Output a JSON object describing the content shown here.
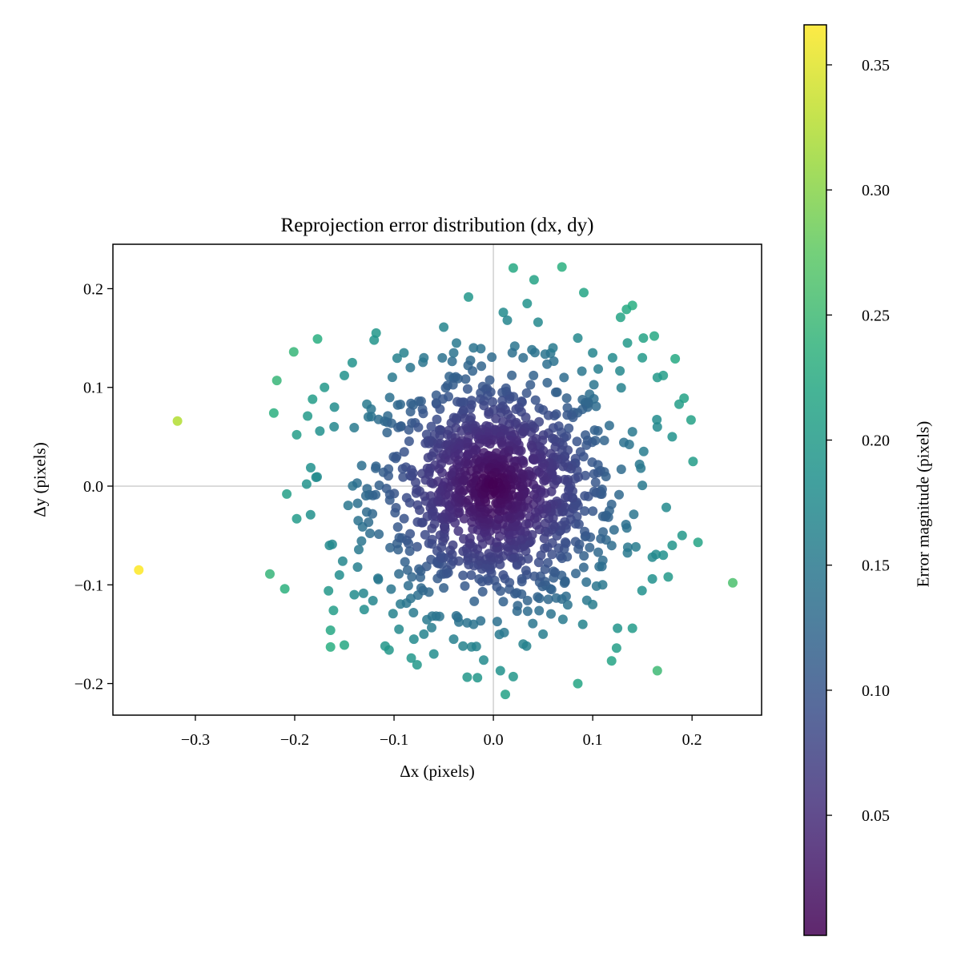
{
  "chart_data": {
    "type": "scatter",
    "title": "Reprojection error distribution (dx, dy)",
    "xlabel": "Δx (pixels)",
    "ylabel": "Δy (pixels)",
    "xlim": [
      -0.383,
      0.27
    ],
    "ylim": [
      -0.232,
      0.245
    ],
    "xticks": [
      -0.3,
      -0.2,
      -0.1,
      0.0,
      0.1,
      0.2
    ],
    "xtick_labels": [
      "−0.3",
      "−0.2",
      "−0.1",
      "0.0",
      "0.1",
      "0.2"
    ],
    "yticks": [
      -0.2,
      -0.1,
      0.0,
      0.1,
      0.2
    ],
    "ytick_labels": [
      "−0.2",
      "−0.1",
      "0.0",
      "0.1",
      "0.2"
    ],
    "reference_lines": {
      "x": 0.0,
      "y": 0.0
    },
    "colorbar": {
      "label": "Error magnitude (pixels)",
      "colormap": "viridis",
      "range": [
        0.002,
        0.366
      ],
      "ticks": [
        0.05,
        0.1,
        0.15,
        0.2,
        0.25,
        0.3,
        0.35
      ],
      "tick_labels": [
        "0.05",
        "0.10",
        "0.15",
        "0.20",
        "0.25",
        "0.30",
        "0.35"
      ]
    },
    "marker_alpha": 0.85,
    "points": [
      {
        "x": -0.357,
        "y": -0.085
      },
      {
        "x": -0.318,
        "y": 0.066
      },
      {
        "x": 0.241,
        "y": -0.098
      },
      {
        "x": -0.225,
        "y": -0.089
      },
      {
        "x": -0.21,
        "y": -0.104
      },
      {
        "x": -0.221,
        "y": 0.074
      },
      {
        "x": -0.218,
        "y": 0.107
      },
      {
        "x": -0.201,
        "y": 0.136
      },
      {
        "x": -0.177,
        "y": 0.149
      },
      {
        "x": -0.164,
        "y": -0.146
      },
      {
        "x": -0.164,
        "y": -0.163
      },
      {
        "x": -0.15,
        "y": -0.161
      },
      {
        "x": -0.208,
        "y": -0.008
      },
      {
        "x": -0.198,
        "y": -0.033
      },
      {
        "x": -0.198,
        "y": 0.052
      },
      {
        "x": 0.02,
        "y": 0.221
      },
      {
        "x": 0.069,
        "y": 0.222
      },
      {
        "x": 0.041,
        "y": 0.209
      },
      {
        "x": 0.091,
        "y": 0.196
      },
      {
        "x": 0.14,
        "y": 0.183
      },
      {
        "x": 0.134,
        "y": 0.179
      },
      {
        "x": 0.128,
        "y": 0.171
      },
      {
        "x": 0.162,
        "y": 0.152
      },
      {
        "x": 0.151,
        "y": 0.15
      },
      {
        "x": 0.183,
        "y": 0.129
      },
      {
        "x": 0.192,
        "y": 0.089
      },
      {
        "x": 0.187,
        "y": 0.083
      },
      {
        "x": 0.199,
        "y": 0.067
      },
      {
        "x": 0.201,
        "y": 0.025
      },
      {
        "x": 0.206,
        "y": -0.057
      },
      {
        "x": 0.165,
        "y": -0.187
      },
      {
        "x": 0.085,
        "y": -0.2
      },
      {
        "x": 0.012,
        "y": -0.211
      },
      {
        "x": -0.016,
        "y": -0.194
      },
      {
        "x": 0.02,
        "y": -0.193
      },
      {
        "x": 0.007,
        "y": -0.187
      },
      {
        "x": 0.01,
        "y": 0.176
      },
      {
        "x": 0.014,
        "y": 0.168
      },
      {
        "x": 0.034,
        "y": 0.185
      },
      {
        "x": 0.045,
        "y": 0.166
      },
      {
        "x": -0.118,
        "y": 0.155
      },
      {
        "x": -0.05,
        "y": 0.161
      },
      {
        "x": -0.12,
        "y": 0.148
      },
      {
        "x": 0.171,
        "y": 0.112
      },
      {
        "x": 0.165,
        "y": 0.11
      },
      {
        "x": 0.171,
        "y": -0.07
      },
      {
        "x": 0.176,
        "y": -0.092
      },
      {
        "x": 0.16,
        "y": -0.072
      },
      {
        "x": 0.124,
        "y": -0.164
      },
      {
        "x": 0.119,
        "y": -0.177
      },
      {
        "x": -0.105,
        "y": -0.166
      },
      {
        "x": -0.109,
        "y": -0.162
      },
      {
        "x": -0.166,
        "y": -0.106
      },
      {
        "x": -0.161,
        "y": -0.126
      },
      {
        "x": -0.182,
        "y": 0.088
      },
      {
        "x": -0.187,
        "y": 0.071
      },
      {
        "x": -0.188,
        "y": 0.002
      },
      {
        "x": -0.142,
        "y": 0.125
      },
      {
        "x": -0.15,
        "y": 0.112
      },
      {
        "x": -0.184,
        "y": -0.029
      },
      {
        "x": 0.125,
        "y": -0.144
      },
      {
        "x": 0.14,
        "y": -0.144
      },
      {
        "x": 0.16,
        "y": -0.094
      },
      {
        "x": 0.18,
        "y": -0.06
      },
      {
        "x": 0.19,
        "y": -0.05
      },
      {
        "x": 0.18,
        "y": 0.05
      },
      {
        "x": 0.165,
        "y": 0.06
      },
      {
        "x": 0.15,
        "y": 0.13
      },
      {
        "x": 0.135,
        "y": 0.145
      },
      {
        "x": -0.17,
        "y": 0.1
      },
      {
        "x": -0.16,
        "y": 0.08
      },
      {
        "x": -0.165,
        "y": -0.06
      },
      {
        "x": -0.155,
        "y": -0.09
      },
      {
        "x": -0.14,
        "y": -0.11
      },
      {
        "x": -0.13,
        "y": -0.125
      },
      {
        "x": -0.095,
        "y": -0.145
      },
      {
        "x": -0.08,
        "y": -0.155
      },
      {
        "x": -0.07,
        "y": -0.15
      },
      {
        "x": -0.06,
        "y": -0.17
      },
      {
        "x": -0.04,
        "y": -0.155
      },
      {
        "x": -0.02,
        "y": -0.14
      },
      {
        "x": 0.03,
        "y": -0.16
      },
      {
        "x": 0.05,
        "y": -0.15
      },
      {
        "x": 0.07,
        "y": -0.135
      },
      {
        "x": 0.09,
        "y": -0.14
      },
      {
        "x": 0.1,
        "y": -0.12
      },
      {
        "x": 0.11,
        "y": -0.1
      },
      {
        "x": -0.09,
        "y": 0.135
      },
      {
        "x": -0.07,
        "y": 0.13
      },
      {
        "x": -0.04,
        "y": 0.135
      },
      {
        "x": -0.02,
        "y": 0.14
      },
      {
        "x": 0.03,
        "y": 0.13
      },
      {
        "x": 0.06,
        "y": 0.14
      },
      {
        "x": 0.085,
        "y": 0.15
      },
      {
        "x": 0.1,
        "y": 0.135
      },
      {
        "x": 0.12,
        "y": 0.13
      }
    ]
  }
}
